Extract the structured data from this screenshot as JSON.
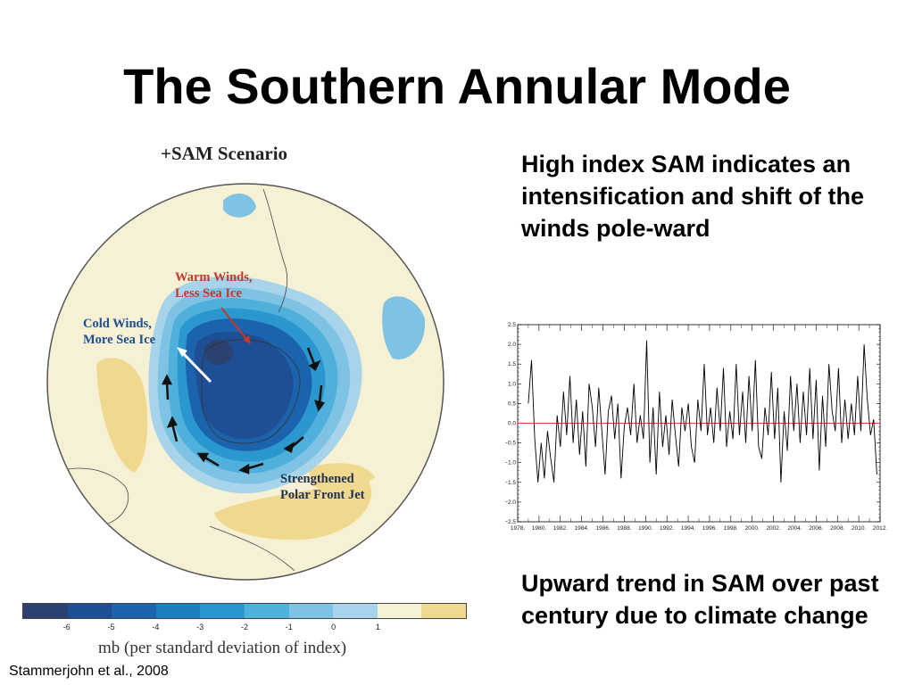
{
  "slide": {
    "title": "The Southern Annular Mode",
    "citation": "Stammerjohn et al., 2008"
  },
  "map": {
    "scenario_title": "+SAM Scenario",
    "labels": {
      "warm_line1": "Warm Winds,",
      "warm_line2": "Less Sea Ice",
      "cold_line1": "Cold Winds,",
      "cold_line2": "More Sea Ice",
      "jet_line1": "Strengthened",
      "jet_line2": "Polar Front Jet"
    },
    "colorbar": {
      "colors": [
        "#2b4170",
        "#1e4f95",
        "#1c63ad",
        "#1d7ec0",
        "#2a97cf",
        "#4fb0dc",
        "#7ec3e3",
        "#a7d4ea",
        "#f6f1d4",
        "#f0d98e"
      ],
      "ticks": [
        "-6",
        "-5",
        "-4",
        "-3",
        "-2",
        "-1",
        "0",
        "1"
      ],
      "caption": "mb (per standard deviation of index)"
    }
  },
  "text": {
    "block_one": "High index SAM indicates an intensification and shift of the winds pole-ward",
    "block_two": "Upward trend in SAM over past century due to climate change"
  },
  "chart_data": {
    "type": "line",
    "title": "",
    "xlabel": "",
    "ylabel": "",
    "xlim": [
      1978,
      2012
    ],
    "ylim": [
      -2.5,
      2.5
    ],
    "x_ticks": [
      "1978.",
      "1980.",
      "1982.",
      "1984.",
      "1986.",
      "1988.",
      "1990.",
      "1992.",
      "1994.",
      "1996.",
      "1998.",
      "2000.",
      "2002.",
      "2004.",
      "2006.",
      "2008.",
      "2010.",
      "2012."
    ],
    "y_ticks": [
      "2.5",
      "2.0",
      "1.5",
      "1.0",
      "0.5",
      "0.0",
      "−0.5",
      "−1.0",
      "−1.5",
      "−2.0",
      "−2.5"
    ],
    "reference_line": {
      "y": 0,
      "color": "#e53935"
    },
    "series": [
      {
        "color": "#000000",
        "x": [
          1979.0,
          1979.3,
          1979.6,
          1979.9,
          1980.2,
          1980.5,
          1980.8,
          1981.1,
          1981.4,
          1981.7,
          1982.0,
          1982.3,
          1982.6,
          1982.9,
          1983.2,
          1983.5,
          1983.8,
          1984.1,
          1984.4,
          1984.7,
          1985.0,
          1985.3,
          1985.6,
          1985.9,
          1986.2,
          1986.5,
          1986.8,
          1987.1,
          1987.4,
          1987.7,
          1988.0,
          1988.3,
          1988.6,
          1988.9,
          1989.2,
          1989.5,
          1989.8,
          1990.1,
          1990.4,
          1990.7,
          1991.0,
          1991.3,
          1991.6,
          1991.9,
          1992.2,
          1992.5,
          1992.8,
          1993.1,
          1993.4,
          1993.7,
          1994.0,
          1994.3,
          1994.6,
          1994.9,
          1995.2,
          1995.5,
          1995.8,
          1996.1,
          1996.4,
          1996.7,
          1997.0,
          1997.3,
          1997.6,
          1997.9,
          1998.2,
          1998.5,
          1998.8,
          1999.1,
          1999.4,
          1999.7,
          2000.0,
          2000.3,
          2000.6,
          2000.9,
          2001.2,
          2001.5,
          2001.8,
          2002.1,
          2002.4,
          2002.7,
          2003.0,
          2003.3,
          2003.6,
          2003.9,
          2004.2,
          2004.5,
          2004.8,
          2005.1,
          2005.4,
          2005.7,
          2006.0,
          2006.3,
          2006.6,
          2006.9,
          2007.2,
          2007.5,
          2007.8,
          2008.1,
          2008.4,
          2008.7,
          2009.0,
          2009.3,
          2009.6,
          2009.9,
          2010.2,
          2010.5,
          2010.8,
          2011.1,
          2011.4,
          2011.7
        ],
        "y": [
          0.5,
          1.6,
          -0.4,
          -1.5,
          -0.5,
          -1.4,
          -0.2,
          -0.9,
          -1.5,
          0.2,
          -0.6,
          0.8,
          -0.3,
          1.2,
          -0.5,
          0.6,
          -0.8,
          0.3,
          -1.1,
          1.0,
          0.4,
          -0.6,
          0.9,
          -0.2,
          -1.3,
          0.3,
          0.7,
          -0.4,
          0.5,
          -1.4,
          -0.1,
          0.4,
          -0.3,
          1.0,
          -0.5,
          0.2,
          -0.4,
          2.1,
          -1.0,
          0.4,
          -1.3,
          0.8,
          -0.6,
          0.2,
          -0.8,
          0.6,
          -0.3,
          -1.1,
          0.4,
          -0.2,
          0.5,
          -0.6,
          -1.0,
          0.6,
          -0.2,
          1.5,
          -0.3,
          0.4,
          -0.5,
          0.9,
          -0.2,
          1.4,
          -0.6,
          0.3,
          -0.4,
          1.5,
          -0.3,
          0.8,
          -0.5,
          1.2,
          -0.2,
          1.6,
          -0.6,
          -0.9,
          0.4,
          -0.3,
          1.3,
          -0.4,
          0.9,
          -1.5,
          0.3,
          -0.7,
          1.2,
          -0.2,
          1.0,
          -0.5,
          0.8,
          -0.3,
          1.4,
          -0.4,
          1.1,
          -1.2,
          0.7,
          -0.6,
          1.5,
          0.3,
          -0.2,
          1.4,
          -0.5,
          0.6,
          -0.4,
          0.5,
          -0.3,
          1.2,
          -0.2,
          2.0,
          0.6,
          -0.3,
          0.1,
          -1.3
        ]
      }
    ]
  }
}
